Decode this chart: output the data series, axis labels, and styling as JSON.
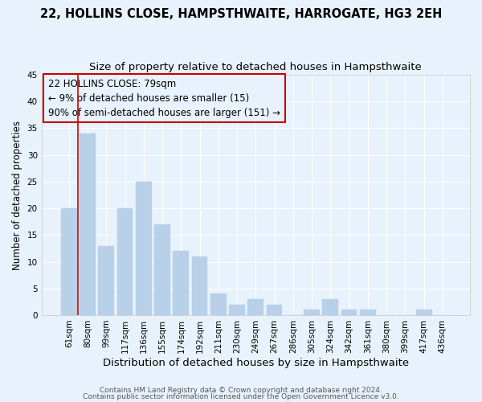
{
  "title": "22, HOLLINS CLOSE, HAMPSTHWAITE, HARROGATE, HG3 2EH",
  "subtitle": "Size of property relative to detached houses in Hampsthwaite",
  "xlabel": "Distribution of detached houses by size in Hampsthwaite",
  "ylabel": "Number of detached properties",
  "bar_color": "#b8d0e8",
  "bar_edge_color": "#b8d0e8",
  "categories": [
    "61sqm",
    "80sqm",
    "99sqm",
    "117sqm",
    "136sqm",
    "155sqm",
    "174sqm",
    "192sqm",
    "211sqm",
    "230sqm",
    "249sqm",
    "267sqm",
    "286sqm",
    "305sqm",
    "324sqm",
    "342sqm",
    "361sqm",
    "380sqm",
    "399sqm",
    "417sqm",
    "436sqm"
  ],
  "values": [
    20,
    34,
    13,
    20,
    25,
    17,
    12,
    11,
    4,
    2,
    3,
    2,
    0,
    1,
    3,
    1,
    1,
    0,
    0,
    1,
    0
  ],
  "ylim": [
    0,
    45
  ],
  "yticks": [
    0,
    5,
    10,
    15,
    20,
    25,
    30,
    35,
    40,
    45
  ],
  "vline_color": "#cc0000",
  "annotation_text_line1": "22 HOLLINS CLOSE: 79sqm",
  "annotation_text_line2": "← 9% of detached houses are smaller (15)",
  "annotation_text_line3": "90% of semi-detached houses are larger (151) →",
  "box_edge_color": "#cc0000",
  "footnote1": "Contains HM Land Registry data © Crown copyright and database right 2024.",
  "footnote2": "Contains public sector information licensed under the Open Government Licence v3.0.",
  "background_color": "#e8f2fc",
  "grid_color": "white",
  "title_fontsize": 10.5,
  "subtitle_fontsize": 9.5,
  "xlabel_fontsize": 9.5,
  "ylabel_fontsize": 8.5,
  "annotation_fontsize": 8.5,
  "footnote_fontsize": 6.5,
  "tick_fontsize": 7.5
}
